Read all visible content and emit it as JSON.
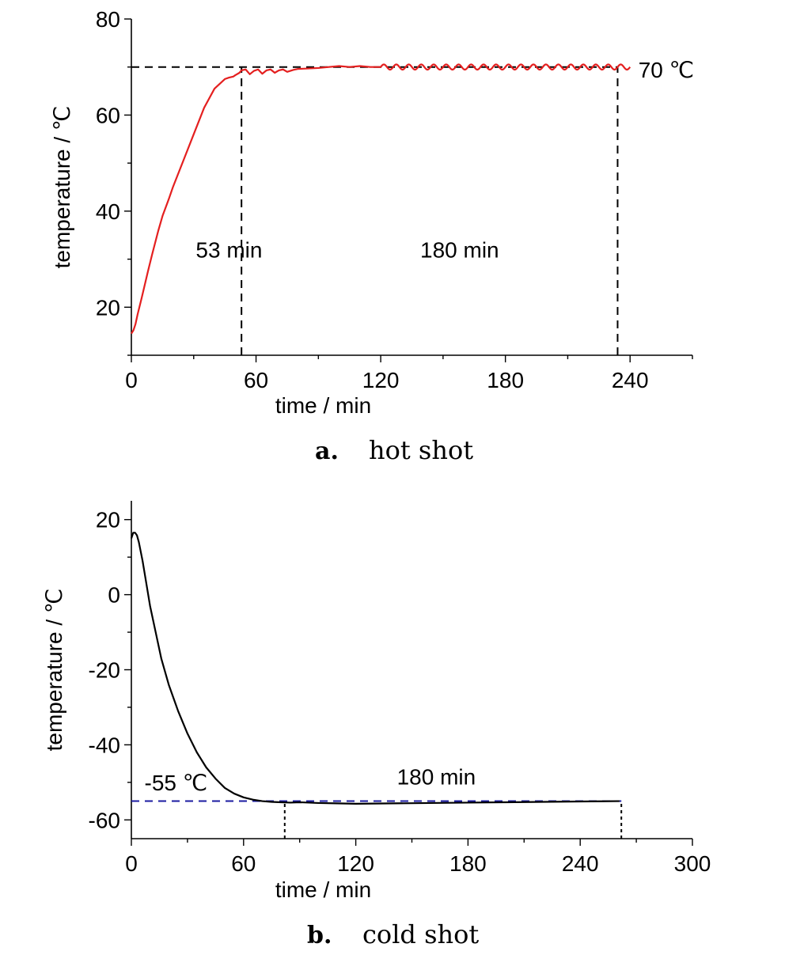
{
  "chart_data": [
    {
      "type": "line",
      "xlabel": "time / min",
      "ylabel": "temperature / ℃",
      "xlim": [
        0,
        270
      ],
      "ylim": [
        10,
        80
      ],
      "x_ticks": [
        0,
        60,
        120,
        180,
        240
      ],
      "x_tick_labels": [
        "0",
        "60",
        "120",
        "180",
        "240"
      ],
      "y_ticks": [
        20,
        40,
        60,
        80
      ],
      "y_tick_labels": [
        "20",
        "40",
        "60",
        "80"
      ],
      "grid": false,
      "caption_letter": "a.",
      "caption_text": "hot shot",
      "series": [
        {
          "color": "#e41f1f",
          "x": [
            0,
            1,
            2,
            3,
            5,
            8,
            10,
            13,
            15,
            18,
            20,
            25,
            30,
            35,
            40,
            45,
            47,
            49,
            50,
            52,
            53,
            55,
            57,
            59,
            61,
            63,
            65,
            67,
            69,
            71,
            73,
            75,
            78,
            80,
            85,
            90,
            95,
            100,
            105,
            110,
            115,
            120,
            240
          ],
          "y": [
            14.5,
            15.2,
            16.5,
            18.5,
            22,
            27.5,
            31,
            36,
            39,
            42.5,
            45,
            50.5,
            56,
            61.5,
            65.5,
            67.5,
            67.8,
            68,
            68.3,
            68.8,
            69.3,
            69.5,
            68.5,
            69.2,
            69.5,
            68.6,
            69.3,
            69.5,
            68.8,
            69.3,
            69.5,
            69,
            69.4,
            69.6,
            69.7,
            69.8,
            70,
            70.2,
            70,
            70.2,
            70,
            70,
            70
          ],
          "oscillation": {
            "x_start": 120,
            "x_end": 240,
            "center": 70,
            "amplitude": 0.55,
            "period": 6
          }
        }
      ],
      "reference_lines": [
        {
          "orientation": "horizontal",
          "y": 70,
          "x_from": 0,
          "x_to": 234,
          "style": "dashed",
          "color": "#000000"
        },
        {
          "orientation": "vertical",
          "x": 53,
          "y_from": 10,
          "y_to": 70,
          "style": "dashed",
          "color": "#000000"
        },
        {
          "orientation": "vertical",
          "x": 234,
          "y_from": 10,
          "y_to": 70,
          "style": "dashed",
          "color": "#000000"
        }
      ],
      "annotations": [
        {
          "text": "70 ℃",
          "x": 244,
          "y": 69.5
        },
        {
          "text": "53 min",
          "x": 31,
          "y": 32
        },
        {
          "text": "180 min",
          "x": 139,
          "y": 32
        }
      ]
    },
    {
      "type": "line",
      "xlabel": "time / min",
      "ylabel": "temperature / ℃",
      "xlim": [
        0,
        300
      ],
      "ylim": [
        -65,
        25
      ],
      "x_ticks": [
        0,
        60,
        120,
        180,
        240,
        300
      ],
      "x_tick_labels": [
        "0",
        "60",
        "120",
        "180",
        "240",
        "300"
      ],
      "y_ticks": [
        -60,
        -40,
        -20,
        0,
        20
      ],
      "y_tick_labels": [
        "-60",
        "-40",
        "-20",
        "0",
        "20"
      ],
      "grid": false,
      "caption_letter": "b.",
      "caption_text": "cold shot",
      "series": [
        {
          "color": "#000000",
          "x": [
            0,
            1,
            2,
            3,
            4,
            6,
            8,
            10,
            13,
            16,
            20,
            25,
            30,
            35,
            40,
            45,
            50,
            55,
            60,
            65,
            70,
            75,
            80,
            85,
            90,
            100,
            110,
            120,
            140,
            160,
            180,
            200,
            220,
            240,
            261
          ],
          "y": [
            15,
            16.5,
            16.5,
            15.8,
            14,
            9,
            3,
            -3,
            -10,
            -17,
            -24,
            -31,
            -37,
            -42,
            -46,
            -49,
            -51.5,
            -53,
            -54,
            -54.6,
            -55,
            -55.2,
            -55.3,
            -55.4,
            -55.3,
            -55.5,
            -55.6,
            -55.7,
            -55.6,
            -55.5,
            -55.4,
            -55.3,
            -55.2,
            -55.1,
            -55
          ]
        }
      ],
      "reference_lines": [
        {
          "orientation": "horizontal",
          "y": -55,
          "x_from": 0,
          "x_to": 262,
          "style": "dashed",
          "color": "#1a1aa0"
        },
        {
          "orientation": "vertical",
          "x": 82,
          "y_from": -65,
          "y_to": -55,
          "style": "dotted",
          "color": "#000000"
        },
        {
          "orientation": "vertical",
          "x": 262,
          "y_from": -65,
          "y_to": -55,
          "style": "dotted",
          "color": "#000000"
        }
      ],
      "annotations": [
        {
          "text": "-55 ℃",
          "x": 7,
          "y": -50
        },
        {
          "text": "180 min",
          "x": 142,
          "y": -48.5
        }
      ]
    }
  ]
}
